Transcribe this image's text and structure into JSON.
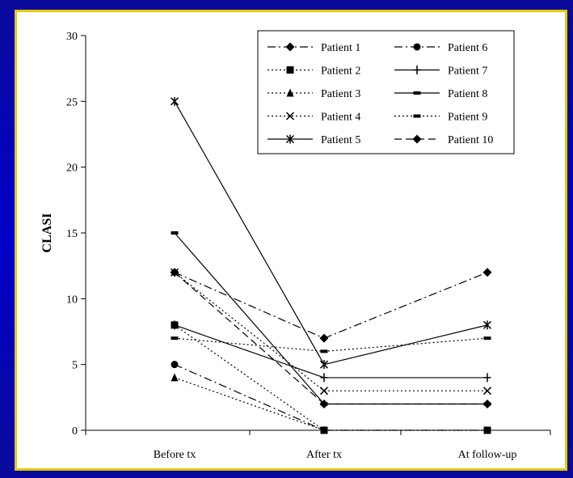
{
  "chart_data": {
    "type": "line",
    "title": "",
    "xlabel": "",
    "ylabel": "CLASI",
    "categories": [
      "Before tx",
      "After tx",
      "At follow-up"
    ],
    "yticks": [
      0,
      5,
      10,
      15,
      20,
      25,
      30
    ],
    "ylim": [
      0,
      30
    ],
    "legend_placement": "top-right",
    "grid": false,
    "series": [
      {
        "name": "Patient 1",
        "values": [
          12,
          7,
          12
        ],
        "marker": "diamond",
        "dash": "dashdot"
      },
      {
        "name": "Patient 2",
        "values": [
          8,
          0,
          0
        ],
        "marker": "square",
        "dash": "dotted"
      },
      {
        "name": "Patient 3",
        "values": [
          4,
          0,
          null
        ],
        "marker": "triangle",
        "dash": "dotted"
      },
      {
        "name": "Patient 4",
        "values": [
          12,
          3,
          3
        ],
        "marker": "x",
        "dash": "dotted"
      },
      {
        "name": "Patient 5",
        "values": [
          25,
          5,
          8
        ],
        "marker": "star",
        "dash": "solid"
      },
      {
        "name": "Patient 6",
        "values": [
          5,
          0,
          0
        ],
        "marker": "circle",
        "dash": "dashdot"
      },
      {
        "name": "Patient 7",
        "values": [
          8,
          4,
          4
        ],
        "marker": "plus",
        "dash": "solid"
      },
      {
        "name": "Patient 8",
        "values": [
          15,
          2,
          2
        ],
        "marker": "dash",
        "dash": "solid"
      },
      {
        "name": "Patient 9",
        "values": [
          7,
          6,
          7
        ],
        "marker": "dash",
        "dash": "dotted"
      },
      {
        "name": "Patient 10",
        "values": [
          12,
          2,
          2
        ],
        "marker": "diamond",
        "dash": "dashed"
      }
    ]
  }
}
